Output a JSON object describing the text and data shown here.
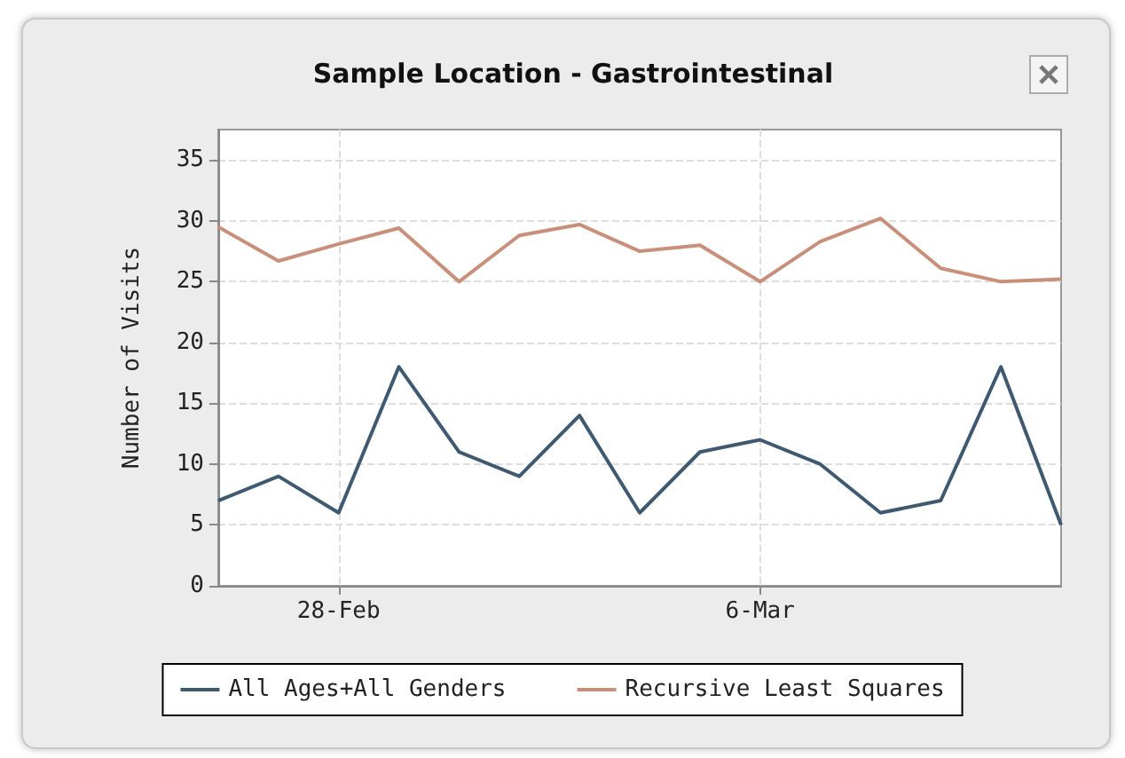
{
  "chart_data": {
    "type": "line",
    "title": "Sample Location - Gastrointestinal",
    "ylabel": "Number of Visits",
    "x": [
      "--02-26",
      "--02-27",
      "--02-28",
      "--02-29",
      "--03-01",
      "--03-02",
      "--03-03",
      "--03-04",
      "--03-05",
      "--03-06",
      "--03-07",
      "--03-08",
      "--03-09",
      "--03-10",
      "--03-11"
    ],
    "series": [
      {
        "name": "All Ages+All Genders",
        "color": "#3f5a70",
        "values": [
          7,
          9,
          6,
          18,
          11,
          9,
          14,
          6,
          11,
          12,
          10,
          6,
          7,
          18,
          5
        ]
      },
      {
        "name": "Recursive Least Squares",
        "color": "#c8907a",
        "values": [
          29.5,
          26.7,
          28.1,
          29.4,
          25,
          28.8,
          29.7,
          27.5,
          28,
          25,
          28.3,
          30.2,
          26.1,
          25,
          25.2
        ]
      }
    ],
    "xlim": [
      "--02-26",
      "--03-11"
    ],
    "xticks": [
      {
        "value": "--02-28",
        "label": "28-Feb"
      },
      {
        "value": "--03-06",
        "label": "6-Mar"
      }
    ],
    "ylim": [
      0,
      37.5
    ],
    "yticks": [
      0,
      5,
      10,
      15,
      20,
      25,
      30,
      35
    ],
    "grid": true,
    "legend": "bottom",
    "marker": "none",
    "line_style": "solid"
  }
}
